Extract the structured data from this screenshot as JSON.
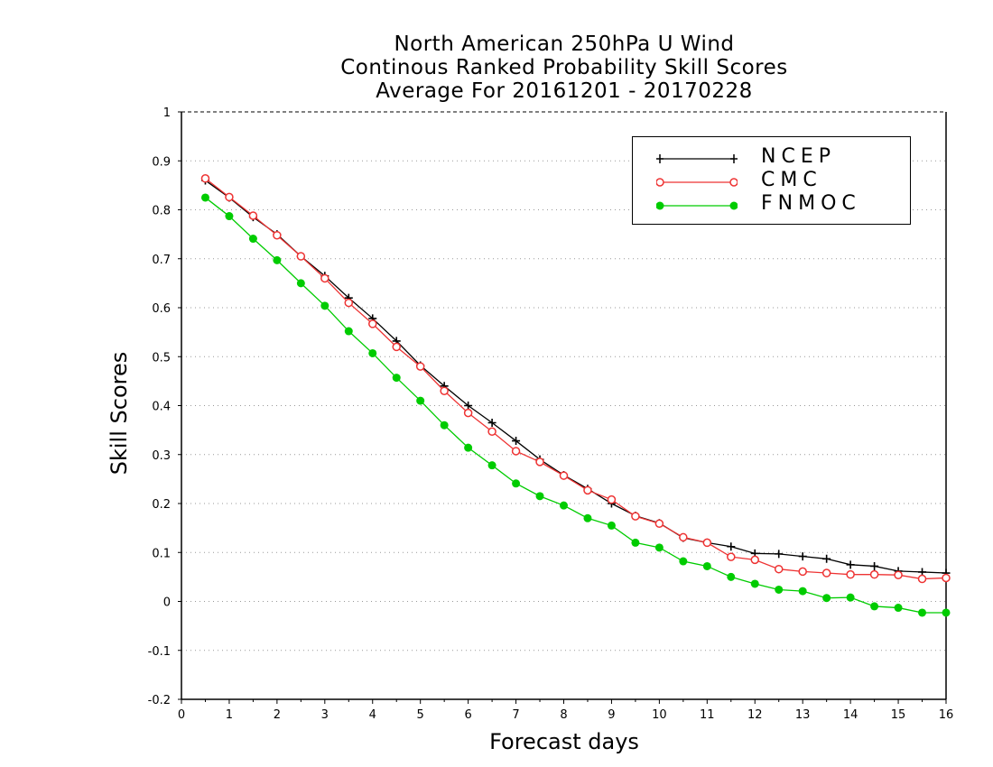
{
  "title": {
    "line1": "North American 250hPa U Wind",
    "line2": "Continous Ranked Probability Skill Scores",
    "line3": "Average For 20161201 - 20170228"
  },
  "chart_data": {
    "type": "line",
    "title": "North American 250hPa U Wind / Continous Ranked Probability Skill Scores / Average For 20161201 - 20170228",
    "xlabel": "Forecast days",
    "ylabel": "Skill Scores",
    "xlim": [
      0,
      16
    ],
    "ylim": [
      -0.2,
      1
    ],
    "xticks": [
      "0",
      "1",
      "2",
      "3",
      "4",
      "5",
      "6",
      "7",
      "8",
      "9",
      "10",
      "11",
      "12",
      "13",
      "14",
      "15",
      "16"
    ],
    "yticks": [
      "-0.2",
      "-0.1",
      "0",
      "0.1",
      "0.2",
      "0.3",
      "0.4",
      "0.5",
      "0.6",
      "0.7",
      "0.8",
      "0.9",
      "1"
    ],
    "grid": "horizontal dotted",
    "legend_position": "top-right",
    "x": [
      0.5,
      1,
      1.5,
      2,
      2.5,
      3,
      3.5,
      4,
      4.5,
      5,
      5.5,
      6,
      6.5,
      7,
      7.5,
      8,
      8.5,
      9,
      9.5,
      10,
      10.5,
      11,
      11.5,
      12,
      12.5,
      13,
      13.5,
      14,
      14.5,
      15,
      15.5,
      16
    ],
    "series": [
      {
        "name": "NCEP",
        "color": "#000000",
        "marker": "plus",
        "values": [
          0.86,
          0.825,
          0.785,
          0.75,
          0.705,
          0.665,
          0.62,
          0.578,
          0.532,
          0.482,
          0.44,
          0.4,
          0.365,
          0.328,
          0.29,
          0.258,
          0.23,
          0.2,
          0.175,
          0.16,
          0.13,
          0.12,
          0.112,
          0.098,
          0.097,
          0.092,
          0.087,
          0.075,
          0.072,
          0.062,
          0.06,
          0.058
        ]
      },
      {
        "name": "CMC",
        "color": "#ee3333",
        "marker": "open-circle",
        "values": [
          0.864,
          0.826,
          0.788,
          0.748,
          0.705,
          0.66,
          0.61,
          0.567,
          0.52,
          0.48,
          0.43,
          0.385,
          0.347,
          0.307,
          0.285,
          0.257,
          0.227,
          0.208,
          0.174,
          0.159,
          0.131,
          0.12,
          0.091,
          0.085,
          0.066,
          0.061,
          0.058,
          0.055,
          0.055,
          0.054,
          0.046,
          0.048
        ]
      },
      {
        "name": "FNMOC",
        "color": "#00cc00",
        "marker": "filled-circle",
        "values": [
          0.825,
          0.787,
          0.741,
          0.697,
          0.65,
          0.604,
          0.552,
          0.507,
          0.457,
          0.41,
          0.36,
          0.314,
          0.278,
          0.241,
          0.215,
          0.196,
          0.17,
          0.155,
          0.12,
          0.11,
          0.082,
          0.072,
          0.05,
          0.036,
          0.024,
          0.021,
          0.007,
          0.008,
          -0.01,
          -0.013,
          -0.023,
          -0.023
        ]
      }
    ]
  }
}
